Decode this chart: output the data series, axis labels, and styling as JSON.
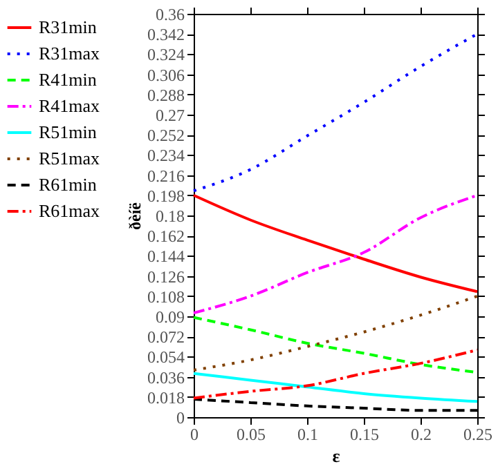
{
  "chart_data": {
    "type": "line",
    "xlabel": "ε",
    "ylabel": "ðèíë",
    "x": [
      0,
      0.05,
      0.1,
      0.15,
      0.2,
      0.25
    ],
    "series": [
      {
        "name": "R31min",
        "color": "#ff0000",
        "line_style": "solid",
        "values": [
          0.198,
          0.176,
          0.158,
          0.141,
          0.125,
          0.112
        ]
      },
      {
        "name": "R31max",
        "color": "#0000ff",
        "line_style": "dotted",
        "values": [
          0.202,
          0.221,
          0.251,
          0.281,
          0.313,
          0.342
        ]
      },
      {
        "name": "R41min",
        "color": "#00ff00",
        "line_style": "dashed",
        "values": [
          0.089,
          0.078,
          0.066,
          0.057,
          0.047,
          0.04
        ]
      },
      {
        "name": "R41max",
        "color": "#ff00ff",
        "line_style": "dashdot",
        "values": [
          0.093,
          0.108,
          0.129,
          0.147,
          0.178,
          0.198
        ]
      },
      {
        "name": "R51min",
        "color": "#00ffff",
        "line_style": "solid",
        "values": [
          0.039,
          0.033,
          0.027,
          0.021,
          0.017,
          0.014
        ]
      },
      {
        "name": "R51max",
        "color": "#804000",
        "line_style": "dotted",
        "values": [
          0.042,
          0.051,
          0.063,
          0.076,
          0.091,
          0.108
        ]
      },
      {
        "name": "R61min",
        "color": "#000000",
        "line_style": "dashed",
        "values": [
          0.016,
          0.013,
          0.01,
          0.008,
          0.006,
          0.006
        ]
      },
      {
        "name": "R61max",
        "color": "#ff0000",
        "line_style": "dashdot",
        "values": [
          0.017,
          0.023,
          0.028,
          0.039,
          0.048,
          0.06
        ]
      }
    ],
    "xlim": [
      0,
      0.25
    ],
    "xticks": [
      0,
      0.05,
      0.1,
      0.15,
      0.2,
      0.25
    ],
    "ylim": [
      0,
      0.36
    ],
    "yticks": [
      0,
      0.018,
      0.036,
      0.054,
      0.072,
      0.09,
      0.108,
      0.126,
      0.144,
      0.162,
      0.18,
      0.198,
      0.216,
      0.234,
      0.252,
      0.27,
      0.288,
      0.306,
      0.324,
      0.342,
      0.36
    ],
    "grid": false,
    "legend": "left",
    "marker": "none"
  }
}
